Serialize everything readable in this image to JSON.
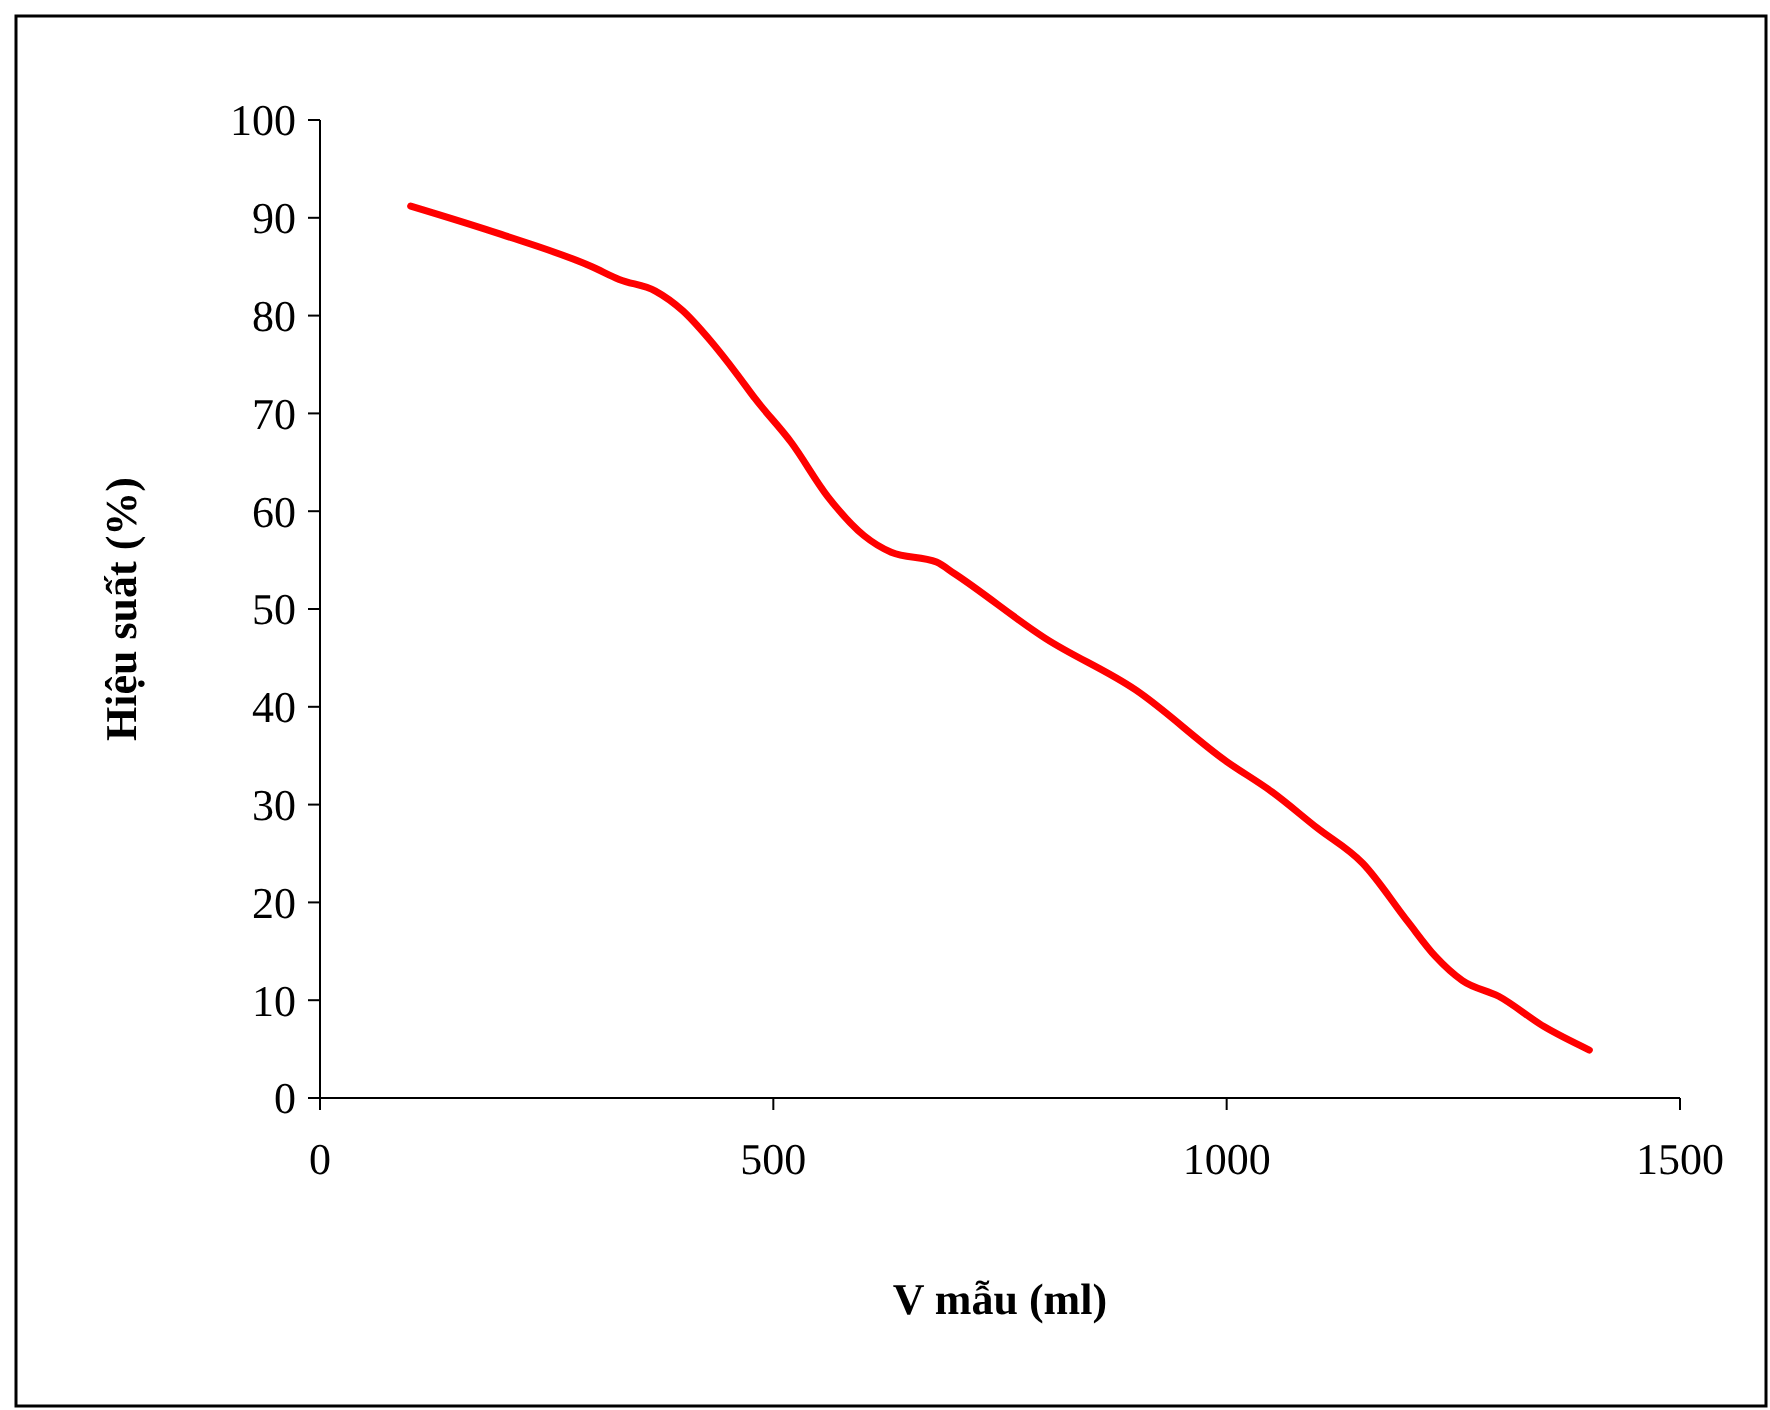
{
  "chart_data": {
    "type": "line",
    "xlabel": "V mẫu (ml)",
    "ylabel": "Hiệu suất (%)",
    "x": [
      100,
      200,
      300,
      330,
      370,
      400,
      430,
      460,
      480,
      520,
      560,
      600,
      630,
      680,
      700,
      800,
      900,
      1000,
      1050,
      1100,
      1150,
      1200,
      1230,
      1260,
      1300,
      1350,
      1400
    ],
    "series": [
      {
        "color": "#ff0000",
        "values": [
          91.2,
          88.3,
          85,
          83.7,
          82.5,
          80.5,
          77.5,
          74,
          71.5,
          67,
          61.5,
          57.5,
          55.8,
          54.8,
          53.6,
          47,
          41.7,
          34.4,
          31.3,
          27.6,
          24,
          18,
          14.5,
          12,
          10.4,
          7.3,
          4.9
        ]
      }
    ],
    "xlim": [
      0,
      1500
    ],
    "xticks": [
      0,
      500,
      1000,
      1500
    ],
    "ylim": [
      0,
      100
    ],
    "yticks": [
      0,
      10,
      20,
      30,
      40,
      50,
      60,
      70,
      80,
      90,
      100
    ],
    "grid": false,
    "marker": "none",
    "line_style": "solid"
  }
}
